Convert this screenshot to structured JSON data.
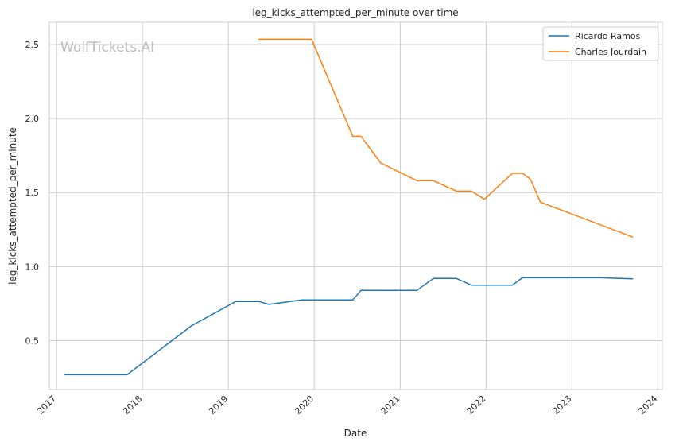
{
  "chart_data": {
    "type": "line",
    "title": "leg_kicks_attempted_per_minute over time",
    "xlabel": "Date",
    "ylabel": "leg_kicks_attempted_per_minute",
    "watermark": "WolfTickets.AI",
    "xlim": [
      "2016-12-01",
      "2024-01-20"
    ],
    "ylim": [
      0.17,
      2.65
    ],
    "x_ticks": [
      "2017",
      "2018",
      "2019",
      "2020",
      "2021",
      "2022",
      "2023",
      "2024"
    ],
    "y_ticks": [
      "0.5",
      "1.0",
      "1.5",
      "2.0",
      "2.5"
    ],
    "grid": true,
    "legend_position": "top-right",
    "series": [
      {
        "name": "Ricardo Ramos",
        "color": "#1f77b4",
        "x": [
          "2017-02-04",
          "2017-10-28",
          "2018-07-28",
          "2019-02-02",
          "2019-05-11",
          "2019-06-22",
          "2019-11-09",
          "2020-06-13",
          "2020-07-18",
          "2021-03-13",
          "2021-05-22",
          "2021-08-28",
          "2021-10-30",
          "2022-04-23",
          "2022-06-04",
          "2023-05-06",
          "2023-09-16"
        ],
        "values": [
          0.27,
          0.27,
          0.6,
          0.765,
          0.765,
          0.745,
          0.775,
          0.775,
          0.84,
          0.84,
          0.92,
          0.92,
          0.875,
          0.875,
          0.925,
          0.925,
          0.918
        ]
      },
      {
        "name": "Charles Jourdain",
        "color": "#ff7f0e",
        "x": [
          "2019-05-11",
          "2019-12-21",
          "2020-06-13",
          "2020-07-18",
          "2020-10-10",
          "2021-03-13",
          "2021-05-22",
          "2021-08-28",
          "2021-10-30",
          "2021-12-25",
          "2022-04-23",
          "2022-06-04",
          "2022-07-09",
          "2022-08-20",
          "2023-09-16"
        ],
        "values": [
          2.535,
          2.535,
          1.88,
          1.88,
          1.7,
          1.58,
          1.58,
          1.51,
          1.51,
          1.455,
          1.63,
          1.63,
          1.59,
          1.435,
          1.2
        ]
      }
    ]
  }
}
